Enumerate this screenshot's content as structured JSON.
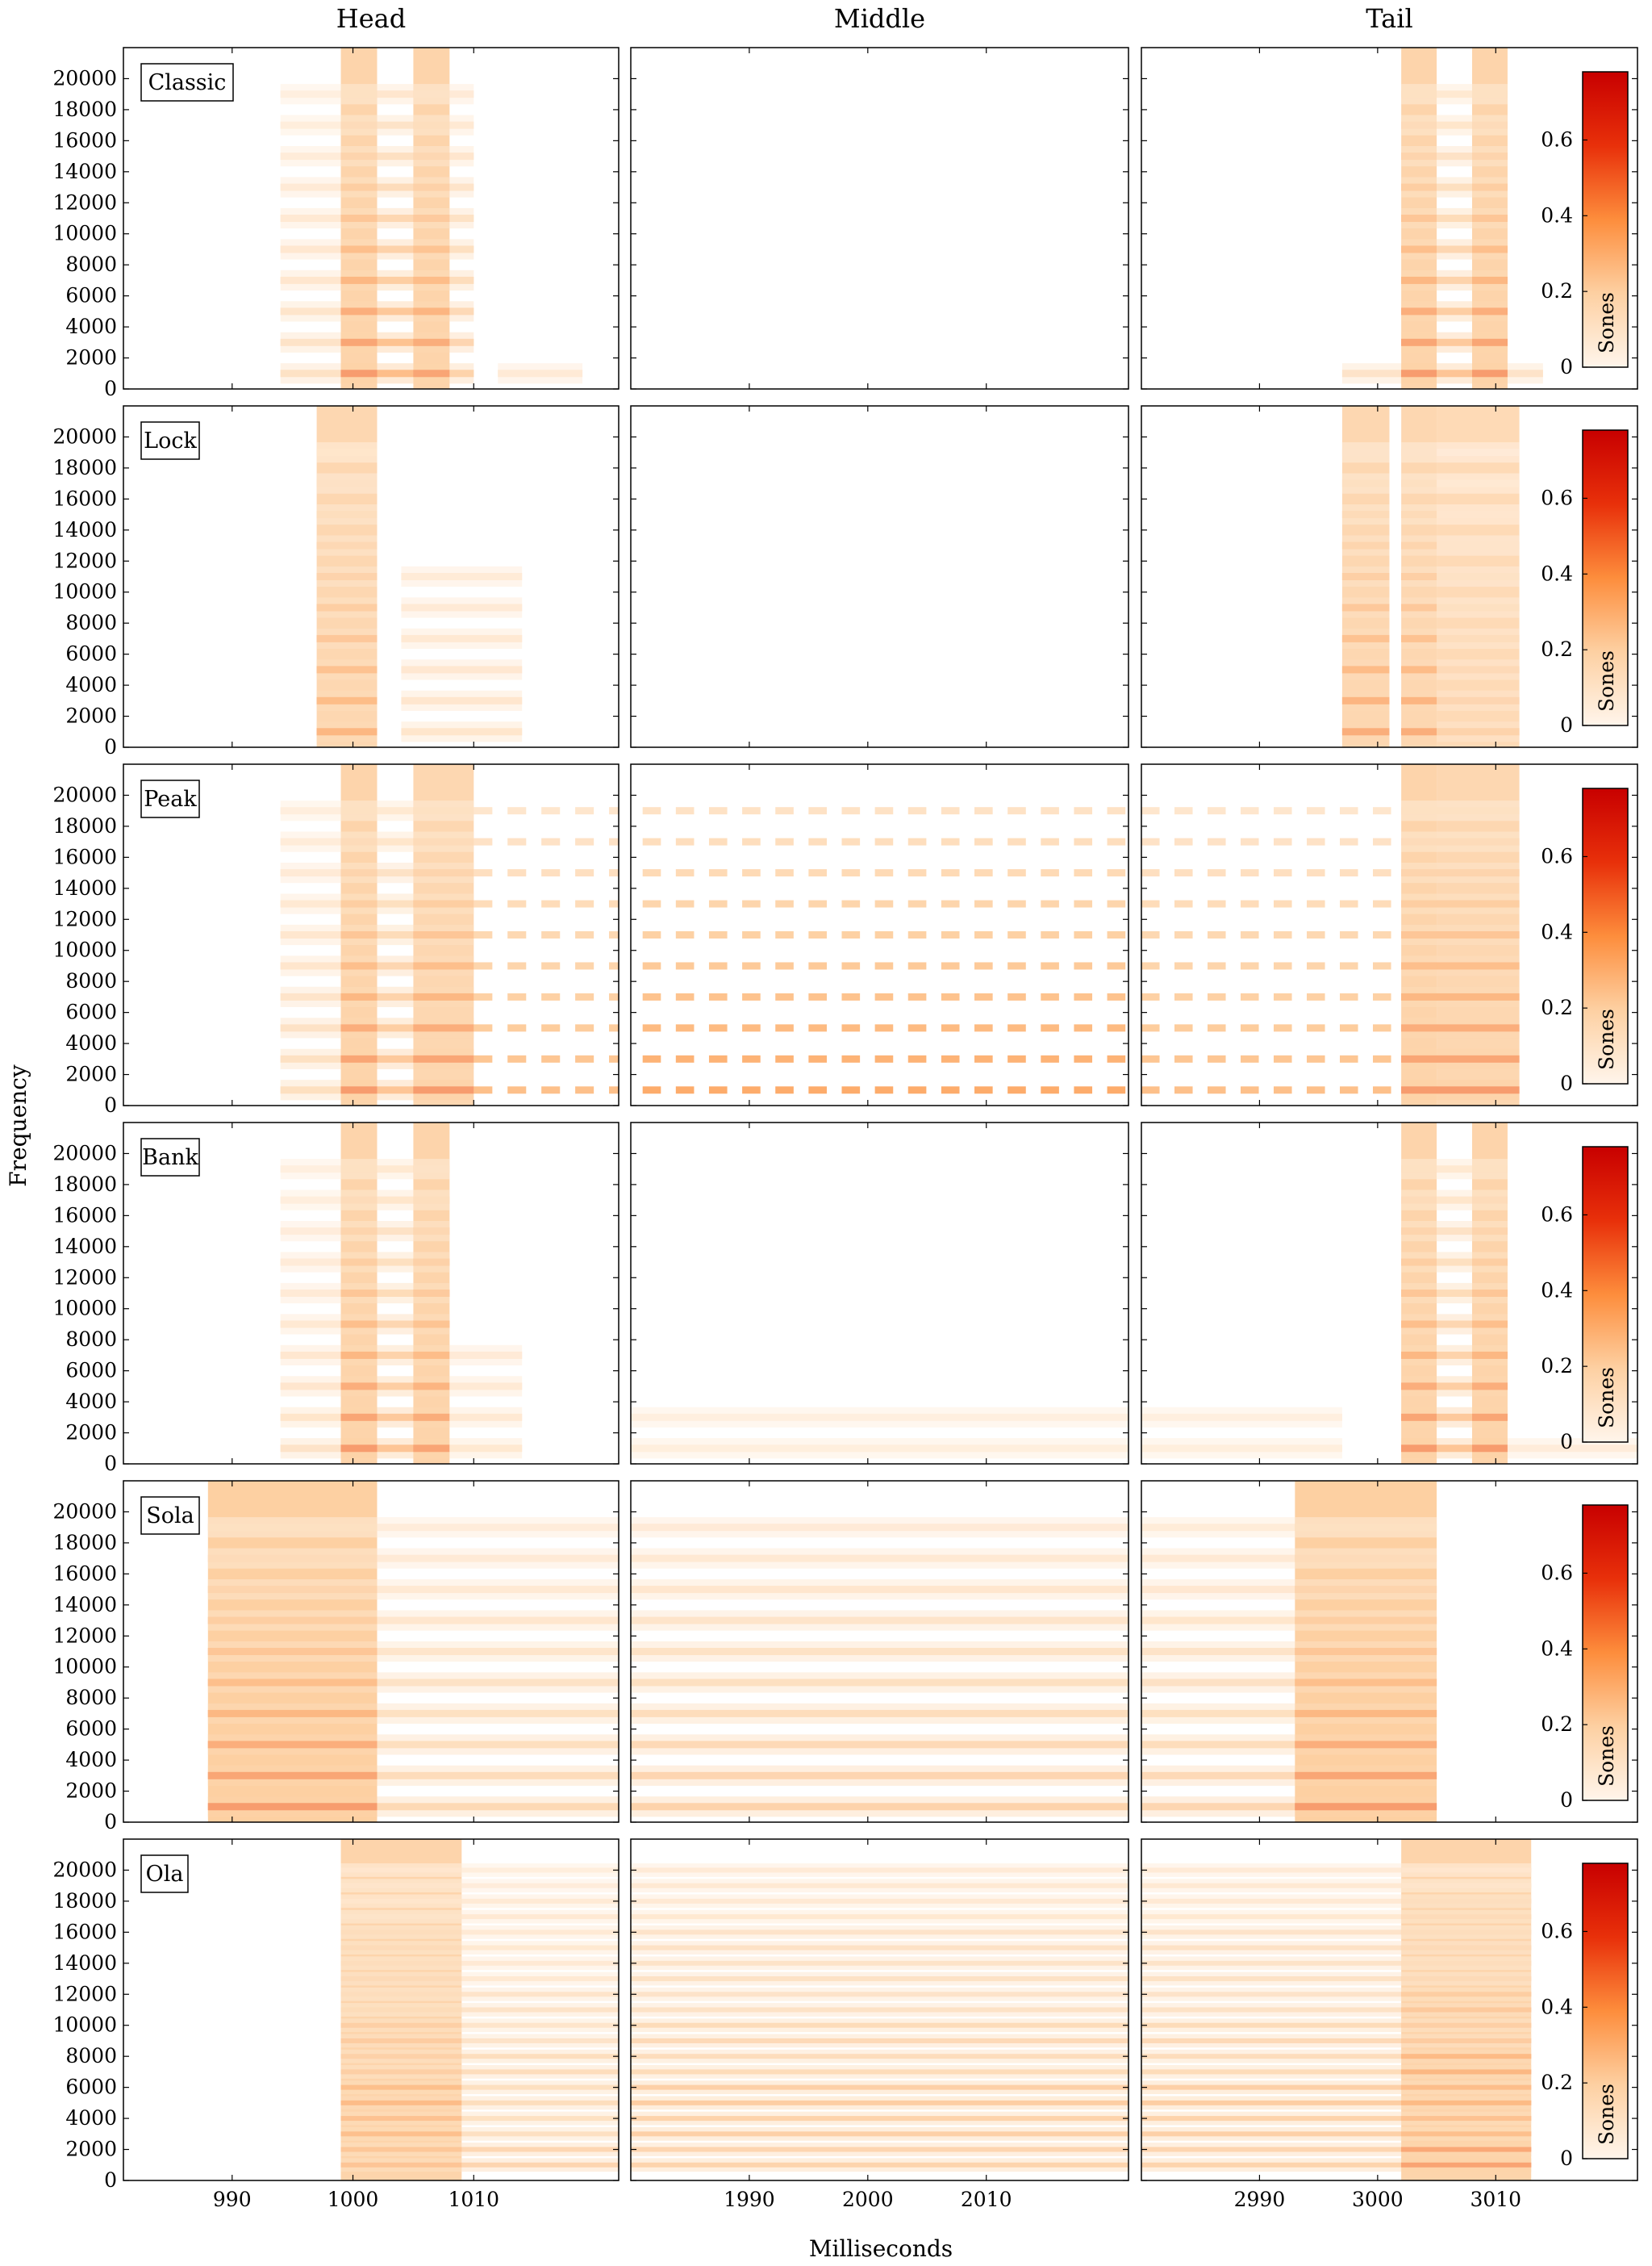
{
  "chart_data": {
    "type": "heatmap",
    "column_titles": [
      "Head",
      "Middle",
      "Tail"
    ],
    "row_labels": [
      "Classic",
      "Lock",
      "Peak",
      "Bank",
      "Sola",
      "Ola"
    ],
    "xlabel": "Milliseconds",
    "ylabel": "Frequency",
    "colorbar": {
      "label": "Sones",
      "range": [
        0,
        0.78
      ],
      "ticks": [
        "0",
        "0.2",
        "0.4",
        "0.6"
      ],
      "colors": [
        "#fff5eb",
        "#fdd0a2",
        "#fd8d3c",
        "#e8300a",
        "#c80000"
      ]
    },
    "y_range": [
      0,
      22000
    ],
    "y_ticks": [
      "0",
      "2000",
      "4000",
      "6000",
      "8000",
      "10000",
      "12000",
      "14000",
      "16000",
      "18000",
      "20000"
    ],
    "x_ranges": [
      [
        981,
        1022
      ],
      [
        1980,
        2022
      ],
      [
        2980,
        3022
      ]
    ],
    "x_ticks": [
      [
        "990",
        "1000",
        "1010"
      ],
      [
        "1990",
        "2000",
        "2010"
      ],
      [
        "2990",
        "3000",
        "3010"
      ]
    ],
    "harmonic_freqs_hz": [
      1000,
      3000,
      5000,
      7000,
      9000,
      11000,
      13000,
      15000,
      17000,
      19000
    ],
    "panels": [
      [
        {
          "label": "Classic",
          "blocks": [
            {
              "x0": 994,
              "x1": 999,
              "I": 0.22
            },
            {
              "x0": 999,
              "x1": 1002,
              "I": 0.7,
              "bg": 0.22
            },
            {
              "x0": 1002,
              "x1": 1005,
              "I": 0.5
            },
            {
              "x0": 1005,
              "x1": 1008,
              "I": 0.65,
              "bg": 0.22
            },
            {
              "x0": 1008,
              "x1": 1010,
              "I": 0.35
            },
            {
              "x0": 1012,
              "x1": 1019,
              "I": 0.12,
              "fmax": 2000
            }
          ]
        },
        {
          "label": "Lock",
          "blocks": [
            {
              "x0": 997,
              "x1": 1002,
              "I": 0.55,
              "bg": 0.2
            },
            {
              "x0": 1004,
              "x1": 1014,
              "I": 0.18,
              "fmax": 11000
            }
          ]
        },
        {
          "label": "Peak",
          "blocks": [
            {
              "x0": 994,
              "x1": 999,
              "I": 0.25
            },
            {
              "x0": 999,
              "x1": 1002,
              "I": 0.7,
              "bg": 0.22
            },
            {
              "x0": 1002,
              "x1": 1005,
              "I": 0.45
            },
            {
              "x0": 1005,
              "x1": 1010,
              "I": 0.7,
              "bg": 0.2
            },
            {
              "x0": 1010,
              "x1": 1022,
              "I": 0.32,
              "period": 2.8
            }
          ]
        },
        {
          "label": "Bank",
          "blocks": [
            {
              "x0": 994,
              "x1": 999,
              "I": 0.2
            },
            {
              "x0": 999,
              "x1": 1002,
              "I": 0.7,
              "bg": 0.22
            },
            {
              "x0": 1002,
              "x1": 1005,
              "I": 0.45
            },
            {
              "x0": 1005,
              "x1": 1008,
              "I": 0.65,
              "bg": 0.22
            },
            {
              "x0": 1008,
              "x1": 1014,
              "I": 0.15,
              "fmax": 8000
            }
          ]
        },
        {
          "label": "Sola",
          "blocks": [
            {
              "x0": 988,
              "x1": 1002,
              "I": 0.7,
              "bg": 0.25
            },
            {
              "x0": 1002,
              "x1": 1022,
              "I": 0.3
            }
          ]
        },
        {
          "label": "Ola",
          "blocks": [
            {
              "x0": 999,
              "x1": 1009,
              "I": 0.6,
              "bg": 0.22,
              "dense": true
            },
            {
              "x0": 1009,
              "x1": 1022,
              "I": 0.35,
              "dense": true
            }
          ]
        }
      ],
      [
        {
          "label": "",
          "blocks": []
        },
        {
          "label": "",
          "blocks": []
        },
        {
          "label": "",
          "blocks": [
            {
              "x0": 1981,
              "x1": 2022,
              "I": 0.4,
              "period": 2.8
            }
          ]
        },
        {
          "label": "",
          "blocks": [
            {
              "x0": 1980,
              "x1": 2022,
              "I": 0.08,
              "fmax": 4000
            }
          ]
        },
        {
          "label": "",
          "blocks": [
            {
              "x0": 1980,
              "x1": 2022,
              "I": 0.35
            }
          ]
        },
        {
          "label": "",
          "blocks": [
            {
              "x0": 1980,
              "x1": 2022,
              "I": 0.45,
              "dense": true
            }
          ]
        }
      ],
      [
        {
          "label": "",
          "blocks": [
            {
              "x0": 2997,
              "x1": 3002,
              "I": 0.2,
              "fmax": 2000
            },
            {
              "x0": 3002,
              "x1": 3005,
              "I": 0.7,
              "bg": 0.22
            },
            {
              "x0": 3005,
              "x1": 3008,
              "I": 0.45
            },
            {
              "x0": 3008,
              "x1": 3011,
              "I": 0.7,
              "bg": 0.22
            },
            {
              "x0": 3011,
              "x1": 3014,
              "I": 0.2,
              "fmax": 2000
            }
          ]
        },
        {
          "label": "",
          "blocks": [
            {
              "x0": 2997,
              "x1": 3001,
              "I": 0.6,
              "bg": 0.2
            },
            {
              "x0": 3002,
              "x1": 3005,
              "I": 0.6,
              "bg": 0.2
            },
            {
              "x0": 3005,
              "x1": 3012,
              "I": 0.35,
              "bg": 0.18
            }
          ]
        },
        {
          "label": "",
          "blocks": [
            {
              "x0": 2980,
              "x1": 3002,
              "I": 0.32,
              "period": 2.8
            },
            {
              "x0": 3002,
              "x1": 3005,
              "I": 0.7,
              "bg": 0.22
            },
            {
              "x0": 3005,
              "x1": 3012,
              "I": 0.7,
              "bg": 0.2
            }
          ]
        },
        {
          "label": "",
          "blocks": [
            {
              "x0": 2980,
              "x1": 2997,
              "I": 0.08,
              "fmax": 4000
            },
            {
              "x0": 3002,
              "x1": 3005,
              "I": 0.7,
              "bg": 0.22
            },
            {
              "x0": 3005,
              "x1": 3008,
              "I": 0.45
            },
            {
              "x0": 3008,
              "x1": 3011,
              "I": 0.7,
              "bg": 0.22
            },
            {
              "x0": 3011,
              "x1": 3022,
              "I": 0.1,
              "fmax": 1500
            }
          ]
        },
        {
          "label": "",
          "blocks": [
            {
              "x0": 2980,
              "x1": 2993,
              "I": 0.32
            },
            {
              "x0": 2993,
              "x1": 3005,
              "I": 0.7,
              "bg": 0.25
            }
          ]
        },
        {
          "label": "",
          "blocks": [
            {
              "x0": 2980,
              "x1": 3002,
              "I": 0.45,
              "dense": true
            },
            {
              "x0": 3002,
              "x1": 3013,
              "I": 0.7,
              "bg": 0.22,
              "dense": true
            }
          ]
        }
      ]
    ]
  }
}
